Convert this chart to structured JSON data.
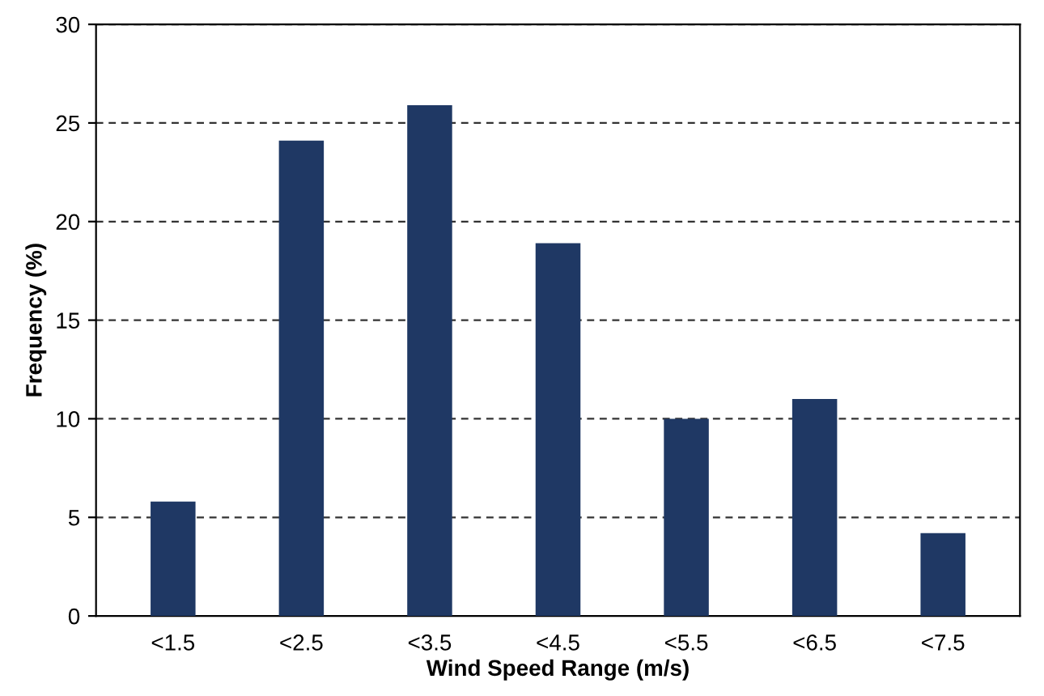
{
  "chart_data": {
    "type": "bar",
    "xlabel": "Wind Speed Range (m/s)",
    "ylabel": "Frequency (%)",
    "categories": [
      "<1.5",
      "<2.5",
      "<3.5",
      "<4.5",
      "<5.5",
      "<6.5",
      "<7.5"
    ],
    "values": [
      5.8,
      24.1,
      25.9,
      18.9,
      10.0,
      11.0,
      4.2
    ],
    "color": "#1f3864",
    "ylim": [
      0,
      30
    ],
    "yticks": [
      0,
      5,
      10,
      15,
      20,
      25,
      30
    ],
    "grid": "y",
    "line_style": "dashed"
  }
}
